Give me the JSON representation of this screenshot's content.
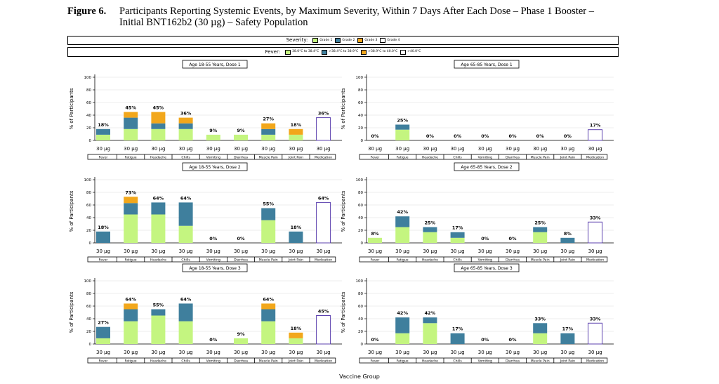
{
  "figure": {
    "number": "Figure 6.",
    "title_line1": "Participants Reporting Systemic Events, by Maximum Severity, Within 7 Days After Each Dose – Phase 1 Booster –",
    "title_line2": "Initial BNT162b2 (30 µg) – Safety Population"
  },
  "legend_severity": {
    "title": "Severity:",
    "items": [
      {
        "label": "Grade 1",
        "color": "#c4f580"
      },
      {
        "label": "Grade 2",
        "color": "#3f7f9d"
      },
      {
        "label": "Grade 3",
        "color": "#f2a71b"
      },
      {
        "label": "Grade 4",
        "color": "#ffffff"
      }
    ]
  },
  "legend_fever": {
    "title": "Fever:",
    "items": [
      {
        "label": "38.0°C to 38.4°C",
        "color": "#c4f580"
      },
      {
        "label": ">38.4°C to 38.9°C",
        "color": "#3f7f9d"
      },
      {
        "label": ">38.9°C to 40.0°C",
        "color": "#f2a71b"
      },
      {
        "label": ">40.0°C",
        "color": "#ffffff"
      }
    ]
  },
  "x_axis_title": "Vaccine Group",
  "y_axis_title": "% of Participants",
  "y_ticks": [
    "0",
    "20",
    "40",
    "60",
    "80",
    "100"
  ],
  "group_label": "30 µg",
  "categories": [
    "Fever",
    "Fatigue",
    "Headache",
    "Chills",
    "Vomiting",
    "Diarrhea",
    "Muscle Pain",
    "Joint Pain",
    "Medication"
  ],
  "colors": {
    "grade1": "#c4f580",
    "grade2": "#3f7f9d",
    "grade3": "#f2a71b",
    "medication_border": "#5b3fae"
  },
  "chart_data": [
    {
      "type": "bar",
      "title": "Age 18-55 Years, Dose 1",
      "ylabel": "% of Participants",
      "ylim": [
        0,
        100
      ],
      "categories": [
        "Fever",
        "Fatigue",
        "Headache",
        "Chills",
        "Vomiting",
        "Diarrhea",
        "Muscle Pain",
        "Joint Pain",
        "Medication"
      ],
      "totals": [
        "18%",
        "45%",
        "45%",
        "36%",
        "9%",
        "9%",
        "27%",
        "18%",
        "36%"
      ],
      "series": [
        {
          "name": "Grade 1",
          "values": [
            9,
            18,
            18,
            18,
            9,
            9,
            9,
            9,
            0
          ]
        },
        {
          "name": "Grade 2",
          "values": [
            9,
            18,
            9,
            9,
            0,
            0,
            9,
            0,
            0
          ]
        },
        {
          "name": "Grade 3",
          "values": [
            0,
            9,
            18,
            9,
            0,
            0,
            9,
            9,
            0
          ]
        },
        {
          "name": "Medication",
          "values": [
            0,
            0,
            0,
            0,
            0,
            0,
            0,
            0,
            36
          ]
        }
      ]
    },
    {
      "type": "bar",
      "title": "Age 65-85 Years, Dose 1",
      "ylabel": "% of Participants",
      "ylim": [
        0,
        100
      ],
      "categories": [
        "Fever",
        "Fatigue",
        "Headache",
        "Chills",
        "Vomiting",
        "Diarrhea",
        "Muscle Pain",
        "Joint Pain",
        "Medication"
      ],
      "totals": [
        "0%",
        "25%",
        "0%",
        "0%",
        "0%",
        "0%",
        "0%",
        "0%",
        "17%"
      ],
      "series": [
        {
          "name": "Grade 1",
          "values": [
            0,
            17,
            0,
            0,
            0,
            0,
            0,
            0,
            0
          ]
        },
        {
          "name": "Grade 2",
          "values": [
            0,
            8,
            0,
            0,
            0,
            0,
            0,
            0,
            0
          ]
        },
        {
          "name": "Grade 3",
          "values": [
            0,
            0,
            0,
            0,
            0,
            0,
            0,
            0,
            0
          ]
        },
        {
          "name": "Medication",
          "values": [
            0,
            0,
            0,
            0,
            0,
            0,
            0,
            0,
            17
          ]
        }
      ]
    },
    {
      "type": "bar",
      "title": "Age 18-55 Years, Dose 2",
      "ylabel": "% of Participants",
      "ylim": [
        0,
        100
      ],
      "categories": [
        "Fever",
        "Fatigue",
        "Headache",
        "Chills",
        "Vomiting",
        "Diarrhea",
        "Muscle Pain",
        "Joint Pain",
        "Medication"
      ],
      "totals": [
        "18%",
        "73%",
        "64%",
        "64%",
        "0%",
        "0%",
        "55%",
        "18%",
        "64%"
      ],
      "series": [
        {
          "name": "Grade 1",
          "values": [
            0,
            45,
            45,
            27,
            0,
            0,
            36,
            0,
            0
          ]
        },
        {
          "name": "Grade 2",
          "values": [
            18,
            18,
            19,
            37,
            0,
            0,
            19,
            18,
            0
          ]
        },
        {
          "name": "Grade 3",
          "values": [
            0,
            10,
            0,
            0,
            0,
            0,
            0,
            0,
            0
          ]
        },
        {
          "name": "Medication",
          "values": [
            0,
            0,
            0,
            0,
            0,
            0,
            0,
            0,
            64
          ]
        }
      ]
    },
    {
      "type": "bar",
      "title": "Age 65-85 Years, Dose 2",
      "ylabel": "% of Participants",
      "ylim": [
        0,
        100
      ],
      "categories": [
        "Fever",
        "Fatigue",
        "Headache",
        "Chills",
        "Vomiting",
        "Diarrhea",
        "Muscle Pain",
        "Joint Pain",
        "Medication"
      ],
      "totals": [
        "8%",
        "42%",
        "25%",
        "17%",
        "0%",
        "0%",
        "25%",
        "8%",
        "33%"
      ],
      "series": [
        {
          "name": "Grade 1",
          "values": [
            8,
            25,
            17,
            8,
            0,
            0,
            17,
            0,
            0
          ]
        },
        {
          "name": "Grade 2",
          "values": [
            0,
            17,
            8,
            9,
            0,
            0,
            8,
            8,
            0
          ]
        },
        {
          "name": "Grade 3",
          "values": [
            0,
            0,
            0,
            0,
            0,
            0,
            0,
            0,
            0
          ]
        },
        {
          "name": "Medication",
          "values": [
            0,
            0,
            0,
            0,
            0,
            0,
            0,
            0,
            33
          ]
        }
      ]
    },
    {
      "type": "bar",
      "title": "Age 18-55 Years, Dose 3",
      "ylabel": "% of Participants",
      "ylim": [
        0,
        100
      ],
      "categories": [
        "Fever",
        "Fatigue",
        "Headache",
        "Chills",
        "Vomiting",
        "Diarrhea",
        "Muscle Pain",
        "Joint Pain",
        "Medication"
      ],
      "totals": [
        "27%",
        "64%",
        "55%",
        "64%",
        "0%",
        "9%",
        "64%",
        "18%",
        "45%"
      ],
      "series": [
        {
          "name": "Grade 1",
          "values": [
            9,
            36,
            45,
            36,
            0,
            9,
            36,
            9,
            0
          ]
        },
        {
          "name": "Grade 2",
          "values": [
            18,
            19,
            10,
            28,
            0,
            0,
            19,
            0,
            0
          ]
        },
        {
          "name": "Grade 3",
          "values": [
            0,
            9,
            0,
            0,
            0,
            0,
            9,
            9,
            0
          ]
        },
        {
          "name": "Medication",
          "values": [
            0,
            0,
            0,
            0,
            0,
            0,
            0,
            0,
            45
          ]
        }
      ]
    },
    {
      "type": "bar",
      "title": "Age 65-85 Years, Dose 3",
      "ylabel": "% of Participants",
      "ylim": [
        0,
        100
      ],
      "categories": [
        "Fever",
        "Fatigue",
        "Headache",
        "Chills",
        "Vomiting",
        "Diarrhea",
        "Muscle Pain",
        "Joint Pain",
        "Medication"
      ],
      "totals": [
        "0%",
        "42%",
        "42%",
        "17%",
        "0%",
        "0%",
        "33%",
        "17%",
        "33%"
      ],
      "series": [
        {
          "name": "Grade 1",
          "values": [
            0,
            17,
            33,
            0,
            0,
            0,
            17,
            0,
            0
          ]
        },
        {
          "name": "Grade 2",
          "values": [
            0,
            25,
            9,
            17,
            0,
            0,
            16,
            17,
            0
          ]
        },
        {
          "name": "Grade 3",
          "values": [
            0,
            0,
            0,
            0,
            0,
            0,
            0,
            0,
            0
          ]
        },
        {
          "name": "Medication",
          "values": [
            0,
            0,
            0,
            0,
            0,
            0,
            0,
            0,
            33
          ]
        }
      ]
    }
  ]
}
